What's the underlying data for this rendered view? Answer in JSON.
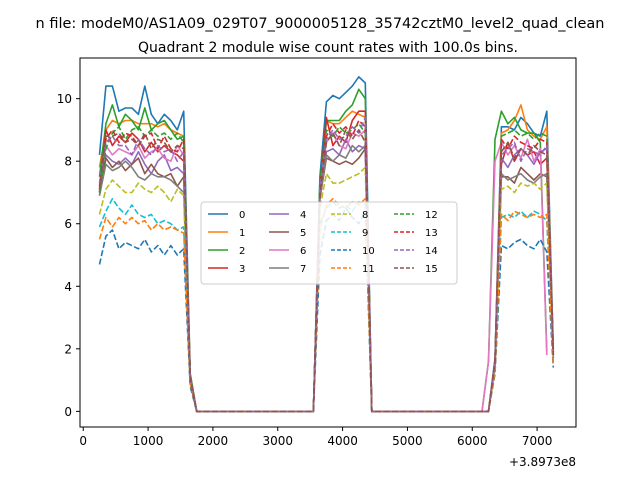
{
  "chart_data": {
    "type": "line",
    "suptitle": "n file: modeM0/AS1A09_029T07_9000005128_35742cztM0_level2_quad_clean",
    "title": "Quadrant 2 module wise count rates with 100.0s bins.",
    "xlabel": "",
    "ylabel": "",
    "x_offset_label": "+3.8973e8",
    "xlim": [
      -50,
      7600
    ],
    "ylim": [
      -0.5,
      11.3
    ],
    "xticks": [
      0,
      1000,
      2000,
      3000,
      4000,
      5000,
      6000,
      7000
    ],
    "yticks": [
      0,
      2,
      4,
      6,
      8,
      10
    ],
    "legend": {
      "location": "center",
      "ncol": 4
    },
    "x_segments": [
      [
        250,
        350,
        450,
        550,
        650,
        750,
        850,
        950,
        1050,
        1150,
        1250,
        1350,
        1450,
        1550,
        1650,
        1750,
        1850,
        1950,
        2050,
        2150,
        2250,
        2350,
        2450,
        2550,
        2650,
        2750,
        2850,
        2950,
        3050,
        3150,
        3250,
        3350,
        3450,
        3550,
        3650,
        3750,
        3850,
        3950,
        4050,
        4150,
        4250,
        4350,
        4450,
        4550,
        4650,
        4750,
        4850,
        4950,
        5050,
        5150,
        5250,
        5350,
        5450,
        5550,
        5650,
        5750,
        5850,
        5950,
        6050,
        6150,
        6250,
        6350,
        6450,
        6550,
        6650,
        6750,
        6850,
        6950,
        7050,
        7150,
        7250
      ]
    ],
    "series": [
      {
        "name": "0",
        "color": "#1f77b4",
        "dash": "solid",
        "values": [
          8.2,
          10.4,
          10.4,
          9.6,
          9.7,
          9.7,
          9.5,
          10.4,
          9.5,
          9.2,
          9.5,
          9.3,
          9.0,
          9.6,
          1.2,
          0,
          0,
          0,
          0,
          0,
          0,
          0,
          0,
          0,
          0,
          0,
          0,
          0,
          0,
          0,
          0,
          0,
          0,
          0,
          7.5,
          9.9,
          10.1,
          10.0,
          10.2,
          10.4,
          10.7,
          10.5,
          0,
          0,
          0,
          0,
          0,
          0,
          0,
          0,
          0,
          0,
          0,
          0,
          0,
          0,
          0,
          0,
          0,
          0,
          0,
          1.7,
          9.1,
          9.1,
          9.0,
          9.4,
          9.2,
          8.9,
          8.8,
          9.6,
          2.0
        ]
      },
      {
        "name": "1",
        "color": "#ff7f0e",
        "dash": "solid",
        "values": [
          7.8,
          9.0,
          9.3,
          9.2,
          9.3,
          9.3,
          9.2,
          9.2,
          9.2,
          9.1,
          9.2,
          9.0,
          8.9,
          8.8,
          1.2,
          0,
          0,
          0,
          0,
          0,
          0,
          0,
          0,
          0,
          0,
          0,
          0,
          0,
          0,
          0,
          0,
          0,
          0,
          0,
          7.2,
          9.3,
          9.2,
          9.2,
          9.4,
          9.6,
          9.5,
          9.4,
          0,
          0,
          0,
          0,
          0,
          0,
          0,
          0,
          0,
          0,
          0,
          0,
          0,
          0,
          0,
          0,
          0,
          0,
          0,
          1.6,
          8.9,
          9.0,
          9.3,
          9.8,
          9.0,
          8.8,
          8.7,
          9.1,
          1.9
        ]
      },
      {
        "name": "2",
        "color": "#2ca02c",
        "dash": "solid",
        "values": [
          7.5,
          9.2,
          9.8,
          9.1,
          9.5,
          9.3,
          9.0,
          9.7,
          9.0,
          9.2,
          9.3,
          9.0,
          8.7,
          8.8,
          1.2,
          0,
          0,
          0,
          0,
          0,
          0,
          0,
          0,
          0,
          0,
          0,
          0,
          0,
          0,
          0,
          0,
          0,
          0,
          0,
          7.3,
          9.3,
          9.3,
          9.3,
          9.6,
          9.8,
          10.3,
          10.0,
          0,
          0,
          0,
          0,
          0,
          0,
          0,
          0,
          0,
          0,
          0,
          0,
          0,
          0,
          0,
          0,
          0,
          0,
          1.6,
          8.7,
          9.6,
          9.2,
          9.4,
          9.0,
          8.9,
          8.9,
          8.6,
          1.9
        ]
      },
      {
        "name": "3",
        "color": "#d62728",
        "dash": "solid",
        "values": [
          7.0,
          9.0,
          8.5,
          8.8,
          8.6,
          8.9,
          8.7,
          8.3,
          8.6,
          8.3,
          8.5,
          8.3,
          8.2,
          8.0,
          1.1,
          0,
          0,
          0,
          0,
          0,
          0,
          0,
          0,
          0,
          0,
          0,
          0,
          0,
          0,
          0,
          0,
          0,
          0,
          0,
          7.1,
          9.4,
          8.5,
          8.8,
          8.6,
          9.3,
          9.6,
          9.6,
          0,
          0,
          0,
          0,
          0,
          0,
          0,
          0,
          0,
          0,
          0,
          0,
          0,
          0,
          0,
          0,
          0,
          0,
          0,
          1.6,
          7.9,
          8.6,
          8.0,
          8.4,
          8.2,
          8.3,
          7.9,
          8.1,
          1.8
        ]
      },
      {
        "name": "4",
        "color": "#9467bd",
        "dash": "solid",
        "values": [
          7.0,
          8.2,
          8.0,
          7.9,
          8.1,
          7.9,
          8.3,
          7.9,
          7.6,
          8.0,
          8.2,
          7.7,
          7.8,
          7.6,
          1.1,
          0,
          0,
          0,
          0,
          0,
          0,
          0,
          0,
          0,
          0,
          0,
          0,
          0,
          0,
          0,
          0,
          0,
          0,
          0,
          6.9,
          8.3,
          8.4,
          8.2,
          8.7,
          8.3,
          8.5,
          8.4,
          0,
          0,
          0,
          0,
          0,
          0,
          0,
          0,
          0,
          0,
          0,
          0,
          0,
          0,
          0,
          0,
          0,
          0,
          0,
          1.5,
          8.1,
          7.8,
          8.2,
          8.4,
          8.2,
          7.9,
          8.3,
          8.4,
          1.8
        ]
      },
      {
        "name": "5",
        "color": "#8c564b",
        "dash": "solid",
        "values": [
          6.9,
          8.1,
          7.8,
          8.0,
          7.7,
          7.9,
          8.1,
          7.6,
          7.9,
          7.6,
          7.5,
          7.6,
          7.2,
          7.5,
          1.1,
          0,
          0,
          0,
          0,
          0,
          0,
          0,
          0,
          0,
          0,
          0,
          0,
          0,
          0,
          0,
          0,
          0,
          0,
          0,
          6.8,
          8.1,
          8.0,
          7.9,
          8.0,
          7.9,
          8.1,
          8.4,
          0,
          0,
          0,
          0,
          0,
          0,
          0,
          0,
          0,
          0,
          0,
          0,
          0,
          0,
          0,
          0,
          0,
          0,
          0,
          1.5,
          7.5,
          7.5,
          7.3,
          7.8,
          7.6,
          7.4,
          7.6,
          7.5,
          1.7
        ]
      },
      {
        "name": "6",
        "color": "#e377c2",
        "dash": "solid",
        "values": [
          7.1,
          8.5,
          8.2,
          8.4,
          8.3,
          8.2,
          8.5,
          8.1,
          8.3,
          8.4,
          8.1,
          8.0,
          8.5,
          8.2,
          1.1,
          0,
          0,
          0,
          0,
          0,
          0,
          0,
          0,
          0,
          0,
          0,
          0,
          0,
          0,
          0,
          0,
          0,
          0,
          0,
          7.0,
          8.6,
          8.9,
          8.5,
          8.4,
          8.9,
          8.8,
          9.0,
          0,
          0,
          0,
          0,
          0,
          0,
          0,
          0,
          0,
          0,
          0,
          0,
          0,
          0,
          0,
          0,
          0,
          0,
          1.6,
          8.0,
          8.6,
          8.2,
          8.5,
          8.1,
          8.7,
          8.0,
          8.4,
          1.8
        ]
      },
      {
        "name": "7",
        "color": "#7f7f7f",
        "dash": "solid",
        "values": [
          6.9,
          7.9,
          7.7,
          7.8,
          8.0,
          7.8,
          7.5,
          7.4,
          7.6,
          7.5,
          7.5,
          7.4,
          7.2,
          7.0,
          1.0,
          0,
          0,
          0,
          0,
          0,
          0,
          0,
          0,
          0,
          0,
          0,
          0,
          0,
          0,
          0,
          0,
          0,
          0,
          0,
          6.8,
          8.2,
          8.0,
          8.2,
          8.1,
          8.5,
          8.3,
          8.5,
          0,
          0,
          0,
          0,
          0,
          0,
          0,
          0,
          0,
          0,
          0,
          0,
          0,
          0,
          0,
          0,
          0,
          0,
          0,
          1.5,
          7.6,
          7.4,
          7.5,
          7.6,
          7.4,
          7.3,
          7.5,
          7.6,
          1.7
        ]
      },
      {
        "name": "8",
        "color": "#bcbd22",
        "dash": "dashed",
        "values": [
          6.3,
          7.1,
          7.4,
          7.2,
          7.0,
          7.0,
          7.3,
          7.1,
          7.0,
          7.2,
          7.0,
          6.7,
          7.1,
          6.9,
          1.0,
          0,
          0,
          0,
          0,
          0,
          0,
          0,
          0,
          0,
          0,
          0,
          0,
          0,
          0,
          0,
          0,
          0,
          0,
          0,
          6.5,
          7.6,
          7.3,
          7.3,
          7.4,
          7.5,
          7.6,
          7.8,
          0,
          0,
          0,
          0,
          0,
          0,
          0,
          0,
          0,
          0,
          0,
          0,
          0,
          0,
          0,
          0,
          0,
          0,
          0,
          1.4,
          7.1,
          7.2,
          7.0,
          7.3,
          7.2,
          7.3,
          7.1,
          7.3,
          1.6
        ]
      },
      {
        "name": "9",
        "color": "#17becf",
        "dash": "dashed",
        "values": [
          5.9,
          6.4,
          6.8,
          6.5,
          6.3,
          6.6,
          6.3,
          6.2,
          6.3,
          6.0,
          6.1,
          6.0,
          5.8,
          5.9,
          0.9,
          0,
          0,
          0,
          0,
          0,
          0,
          0,
          0,
          0,
          0,
          0,
          0,
          0,
          0,
          0,
          0,
          0,
          0,
          0,
          6.0,
          6.5,
          6.7,
          6.5,
          6.6,
          6.4,
          6.7,
          6.6,
          0,
          0,
          0,
          0,
          0,
          0,
          0,
          0,
          0,
          0,
          0,
          0,
          0,
          0,
          0,
          0,
          0,
          0,
          0,
          1.3,
          6.2,
          6.3,
          6.2,
          6.4,
          6.2,
          6.4,
          6.3,
          6.1,
          1.5
        ]
      },
      {
        "name": "10",
        "color": "#1f77b4",
        "dash": "dashed",
        "values": [
          4.7,
          5.6,
          5.8,
          5.2,
          5.4,
          5.3,
          5.2,
          5.5,
          5.1,
          5.3,
          5.0,
          5.3,
          5.0,
          5.2,
          0.8,
          0,
          0,
          0,
          0,
          0,
          0,
          0,
          0,
          0,
          0,
          0,
          0,
          0,
          0,
          0,
          0,
          0,
          0,
          0,
          5.0,
          6.1,
          6.3,
          6.1,
          6.5,
          6.2,
          6.0,
          6.4,
          0,
          0,
          0,
          0,
          0,
          0,
          0,
          0,
          0,
          0,
          0,
          0,
          0,
          0,
          0,
          0,
          0,
          0,
          0,
          1.2,
          5.3,
          5.2,
          5.4,
          5.5,
          5.3,
          5.2,
          5.5,
          5.1,
          1.4
        ]
      },
      {
        "name": "11",
        "color": "#ff7f0e",
        "dash": "dashed",
        "values": [
          5.5,
          6.2,
          5.9,
          6.2,
          6.0,
          6.2,
          6.0,
          6.1,
          5.8,
          6.0,
          5.8,
          5.9,
          5.8,
          5.7,
          0.9,
          0,
          0,
          0,
          0,
          0,
          0,
          0,
          0,
          0,
          0,
          0,
          0,
          0,
          0,
          0,
          0,
          0,
          0,
          0,
          5.8,
          6.6,
          6.8,
          6.6,
          6.5,
          6.7,
          6.6,
          6.8,
          0,
          0,
          0,
          0,
          0,
          0,
          0,
          0,
          0,
          0,
          0,
          0,
          0,
          0,
          0,
          0,
          0,
          0,
          0,
          1.3,
          6.3,
          6.1,
          6.4,
          6.3,
          6.2,
          6.3,
          6.2,
          6.3,
          1.5
        ]
      },
      {
        "name": "12",
        "color": "#2ca02c",
        "dash": "dashed",
        "values": [
          7.0,
          8.4,
          8.9,
          9.1,
          8.7,
          9.0,
          9.1,
          8.8,
          9.0,
          8.8,
          8.9,
          8.7,
          8.9,
          8.6,
          1.1,
          0,
          0,
          0,
          0,
          0,
          0,
          0,
          0,
          0,
          0,
          0,
          0,
          0,
          0,
          0,
          0,
          0,
          0,
          0,
          7.2,
          9.0,
          8.8,
          9.1,
          8.9,
          9.0,
          9.2,
          8.9,
          0,
          0,
          0,
          0,
          0,
          0,
          0,
          0,
          0,
          0,
          0,
          0,
          0,
          0,
          0,
          0,
          0,
          0,
          0,
          1.6,
          8.8,
          8.9,
          9.0,
          8.8,
          8.9,
          8.7,
          8.9,
          8.8,
          1.9
        ]
      },
      {
        "name": "13",
        "color": "#d62728",
        "dash": "dashed",
        "values": [
          7.2,
          8.7,
          9.0,
          8.6,
          8.9,
          8.8,
          8.5,
          8.8,
          8.9,
          8.4,
          8.8,
          8.4,
          8.3,
          8.7,
          1.1,
          0,
          0,
          0,
          0,
          0,
          0,
          0,
          0,
          0,
          0,
          0,
          0,
          0,
          0,
          0,
          0,
          0,
          0,
          0,
          7.0,
          8.8,
          9.2,
          8.9,
          9.1,
          8.8,
          9.3,
          9.1,
          0,
          0,
          0,
          0,
          0,
          0,
          0,
          0,
          0,
          0,
          0,
          0,
          0,
          0,
          0,
          0,
          0,
          0,
          0,
          1.6,
          8.7,
          8.4,
          8.8,
          8.6,
          8.5,
          8.4,
          8.7,
          8.6,
          1.9
        ]
      },
      {
        "name": "14",
        "color": "#9467bd",
        "dash": "dashed",
        "values": [
          7.3,
          8.6,
          8.8,
          8.5,
          8.5,
          8.2,
          8.7,
          8.4,
          8.2,
          8.5,
          8.3,
          8.4,
          8.0,
          8.3,
          1.1,
          0,
          0,
          0,
          0,
          0,
          0,
          0,
          0,
          0,
          0,
          0,
          0,
          0,
          0,
          0,
          0,
          0,
          0,
          0,
          7.1,
          8.7,
          9.0,
          8.7,
          8.8,
          9.1,
          8.9,
          9.4,
          0,
          0,
          0,
          0,
          0,
          0,
          0,
          0,
          0,
          0,
          0,
          0,
          0,
          0,
          0,
          0,
          0,
          0,
          0,
          1.6,
          8.2,
          8.4,
          8.6,
          8.0,
          8.4,
          8.3,
          8.2,
          8.5,
          1.8
        ]
      },
      {
        "name": "15",
        "color": "#8c564b",
        "dash": "dashed",
        "values": [
          7.1,
          8.8,
          8.8,
          8.9,
          8.6,
          8.7,
          8.5,
          8.9,
          8.4,
          8.7,
          8.6,
          8.3,
          8.5,
          8.4,
          1.1,
          0,
          0,
          0,
          0,
          0,
          0,
          0,
          0,
          0,
          0,
          0,
          0,
          0,
          0,
          0,
          0,
          0,
          0,
          0,
          6.9,
          8.6,
          8.9,
          8.5,
          9.0,
          8.7,
          9.0,
          8.6,
          0,
          0,
          0,
          0,
          0,
          0,
          0,
          0,
          0,
          0,
          0,
          0,
          0,
          0,
          0,
          0,
          0,
          0,
          0,
          1.6,
          8.3,
          8.6,
          8.1,
          8.4,
          8.2,
          8.5,
          8.3,
          8.2,
          1.8
        ]
      }
    ]
  }
}
